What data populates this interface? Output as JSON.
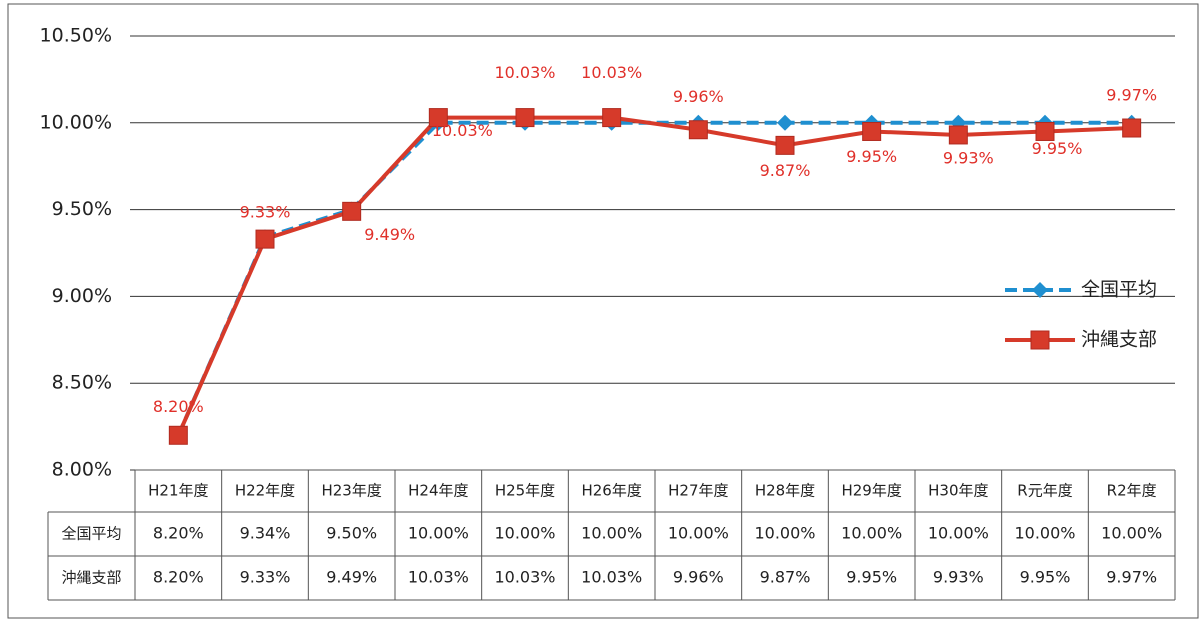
{
  "chart_data": {
    "type": "line",
    "categories": [
      "H21年度",
      "H22年度",
      "H23年度",
      "H24年度",
      "H25年度",
      "H26年度",
      "H27年度",
      "H28年度",
      "H29年度",
      "H30年度",
      "R元年度",
      "R2年度"
    ],
    "series": [
      {
        "name": "全国平均",
        "color": "#1f8fd0",
        "marker": "diamond",
        "dashed": true,
        "values": [
          8.2,
          9.34,
          9.5,
          10.0,
          10.0,
          10.0,
          10.0,
          10.0,
          10.0,
          10.0,
          10.0,
          10.0
        ],
        "value_labels": [
          "8.20%",
          "9.34%",
          "9.50%",
          "10.00%",
          "10.00%",
          "10.00%",
          "10.00%",
          "10.00%",
          "10.00%",
          "10.00%",
          "10.00%",
          "10.00%"
        ]
      },
      {
        "name": "沖縄支部",
        "color": "#d63a2a",
        "marker": "square",
        "dashed": false,
        "show_labels": true,
        "values": [
          8.2,
          9.33,
          9.49,
          10.03,
          10.03,
          10.03,
          9.96,
          9.87,
          9.95,
          9.93,
          9.95,
          9.97
        ],
        "value_labels": [
          "8.20%",
          "9.33%",
          "9.49%",
          "10.03%",
          "10.03%",
          "10.03%",
          "9.96%",
          "9.87%",
          "9.95%",
          "9.93%",
          "9.95%",
          "9.97%"
        ]
      }
    ],
    "ylim": [
      8.0,
      10.5
    ],
    "yticks": [
      {
        "value": 8.0,
        "label": "8.00%"
      },
      {
        "value": 8.5,
        "label": "8.50%"
      },
      {
        "value": 9.0,
        "label": "9.00%"
      },
      {
        "value": 9.5,
        "label": "9.50%"
      },
      {
        "value": 10.0,
        "label": "10.00%"
      },
      {
        "value": 10.5,
        "label": "10.50%"
      }
    ],
    "grid": true,
    "legend": "right",
    "data_table": true
  }
}
